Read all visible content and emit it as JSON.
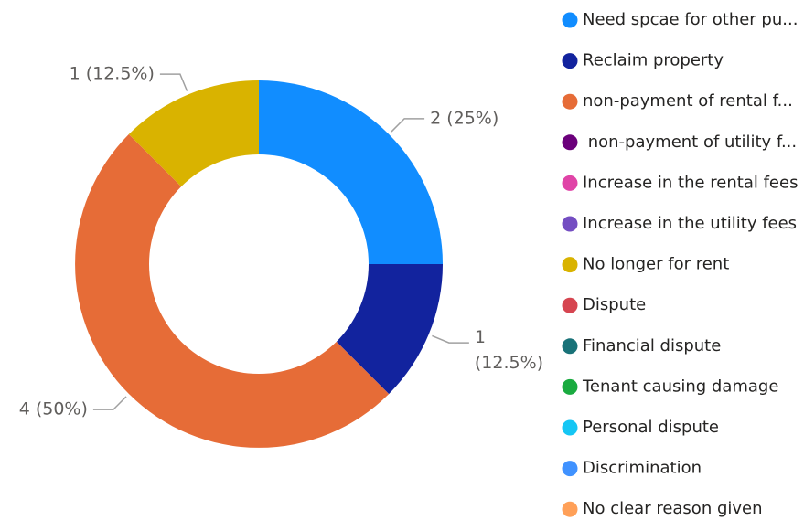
{
  "chart_data": {
    "type": "donut",
    "categories": [
      "Need spcae for other pu...",
      "Reclaim property",
      "non-payment of rental f...",
      " non-payment of utility f...",
      "Increase in the rental fees",
      "Increase in the utility fees",
      "No longer for rent",
      "Dispute",
      "Financial dispute",
      "Tenant causing damage",
      "Personal dispute",
      "Discrimination",
      "No clear reason given"
    ],
    "values": [
      2,
      1,
      4,
      0,
      0,
      0,
      1,
      0,
      0,
      0,
      0,
      0,
      0
    ],
    "value_labels": [
      "2 (25%)",
      "1 (12.5%)",
      "4 (50%)",
      null,
      null,
      null,
      "1 (12.5%)",
      null,
      null,
      null,
      null,
      null,
      null
    ],
    "colors": [
      "#118dff",
      "#12239e",
      "#e66c37",
      "#6b007b",
      "#e044a7",
      "#744ec2",
      "#d9b300",
      "#d64550",
      "#197278",
      "#1aab40",
      "#15c6f4",
      "#4092ff",
      "#ffa058"
    ]
  }
}
